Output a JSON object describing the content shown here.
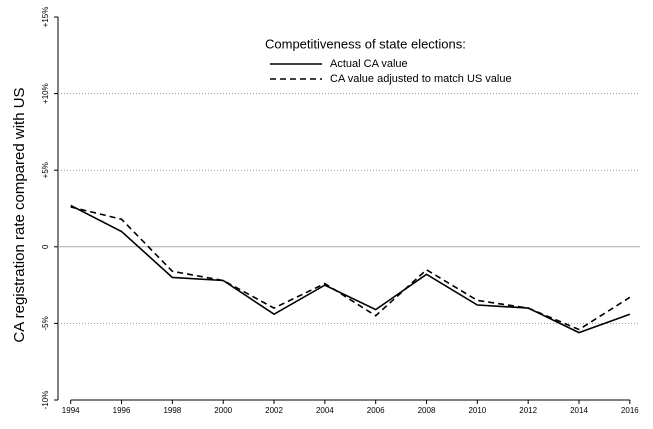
{
  "chart_data": {
    "type": "line",
    "y_label": "CA registration rate compared with US",
    "legend_title": "Competitiveness of state elections:",
    "x": [
      1994,
      1996,
      1998,
      2000,
      2002,
      2004,
      2006,
      2008,
      2010,
      2012,
      2014,
      2016
    ],
    "series": [
      {
        "name": "Actual CA value",
        "color": "#000000",
        "linestyle": "solid",
        "values": [
          2.7,
          1.0,
          -2.0,
          -2.2,
          -4.4,
          -2.5,
          -4.1,
          -1.8,
          -3.8,
          -4.0,
          -5.6,
          -4.4
        ]
      },
      {
        "name": "CA value adjusted to match US value",
        "color": "#000000",
        "linestyle": "dashed",
        "values": [
          2.6,
          1.8,
          -1.6,
          -2.2,
          -4.0,
          -2.4,
          -4.5,
          -1.5,
          -3.5,
          -4.0,
          -5.4,
          -3.3
        ]
      }
    ],
    "xlim": [
      1993.5,
      2016.4
    ],
    "xticks": [
      1994,
      1996,
      1998,
      2000,
      2002,
      2004,
      2006,
      2008,
      2010,
      2012,
      2014,
      2016
    ],
    "ylim": [
      -10,
      15
    ],
    "yticks": [
      {
        "value": -10,
        "label": "-10%"
      },
      {
        "value": -5,
        "label": "-5%"
      },
      0,
      {
        "value": 5,
        "label": "+5%"
      },
      {
        "value": 10,
        "label": "+10%"
      },
      {
        "value": 15,
        "label": "+15%"
      }
    ],
    "grid": true
  }
}
